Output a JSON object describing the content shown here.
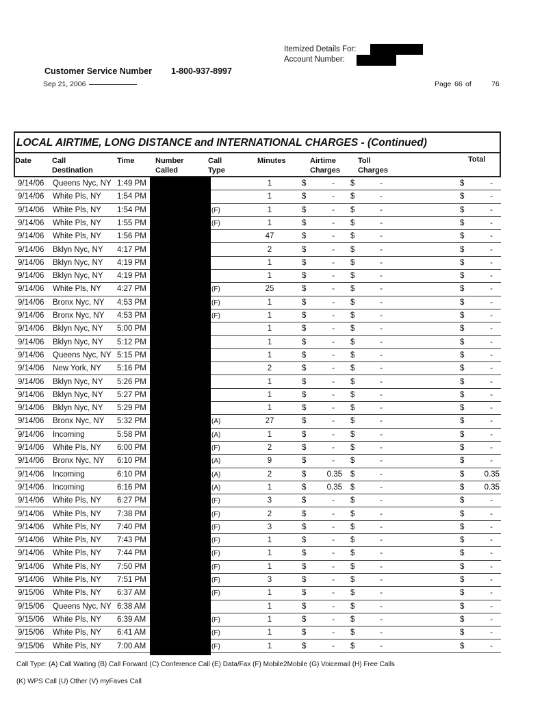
{
  "header": {
    "itemized_label": "Itemized Details For:",
    "account_label": "Account Number:",
    "customer_service_label": "Customer Service Number",
    "customer_service_number": "1-800-937-8997",
    "date": "Sep 21, 2006",
    "page_label": "Page",
    "page_current": "66",
    "page_of": "of",
    "page_total": "76"
  },
  "table": {
    "title": "LOCAL AIRTIME, LONG DISTANCE and INTERNATIONAL CHARGES  - (Continued)",
    "columns": {
      "date": "Date",
      "destination": [
        "Call",
        "Destination"
      ],
      "time": "Time",
      "number": [
        "Number",
        "Called"
      ],
      "type": [
        "Call",
        "Type"
      ],
      "minutes": "Minutes",
      "airtime": [
        "Airtime",
        "Charges"
      ],
      "toll": [
        "Toll",
        "Charges"
      ],
      "total": "Total"
    },
    "currency": "$",
    "rows": [
      [
        "9/14/06",
        "Queens Nyc, NY",
        "1:49 PM",
        "",
        "1",
        "-",
        "-",
        "-"
      ],
      [
        "9/14/06",
        "White Pls, NY",
        "1:54 PM",
        "",
        "1",
        "-",
        "-",
        "-"
      ],
      [
        "9/14/06",
        "White Pls, NY",
        "1:54 PM",
        "(F)",
        "1",
        "-",
        "-",
        "-"
      ],
      [
        "9/14/06",
        "White Pls, NY",
        "1:55 PM",
        "(F)",
        "1",
        "-",
        "-",
        "-"
      ],
      [
        "9/14/06",
        "White Pls, NY",
        "1:56 PM",
        "",
        "47",
        "-",
        "-",
        "-"
      ],
      [
        "9/14/06",
        "Bklyn Nyc, NY",
        "4:17 PM",
        "",
        "2",
        "-",
        "-",
        "-"
      ],
      [
        "9/14/06",
        "Bklyn Nyc, NY",
        "4:19 PM",
        "",
        "1",
        "-",
        "-",
        "-"
      ],
      [
        "9/14/06",
        "Bklyn Nyc, NY",
        "4:19 PM",
        "",
        "1",
        "-",
        "-",
        "-"
      ],
      [
        "9/14/06",
        "White Pls, NY",
        "4:27 PM",
        "(F)",
        "25",
        "-",
        "-",
        "-"
      ],
      [
        "9/14/06",
        "Bronx Nyc, NY",
        "4:53 PM",
        "(F)",
        "1",
        "-",
        "-",
        "-"
      ],
      [
        "9/14/06",
        "Bronx Nyc, NY",
        "4:53 PM",
        "(F)",
        "1",
        "-",
        "-",
        "-"
      ],
      [
        "9/14/06",
        "Bklyn Nyc, NY",
        "5:00 PM",
        "",
        "1",
        "-",
        "-",
        "-"
      ],
      [
        "9/14/06",
        "Bklyn Nyc, NY",
        "5:12 PM",
        "",
        "1",
        "-",
        "-",
        "-"
      ],
      [
        "9/14/06",
        "Queens Nyc, NY",
        "5:15 PM",
        "",
        "1",
        "-",
        "-",
        "-"
      ],
      [
        "9/14/06",
        "New York, NY",
        "5:16 PM",
        "",
        "2",
        "-",
        "-",
        "-"
      ],
      [
        "9/14/06",
        "Bklyn Nyc, NY",
        "5:26 PM",
        "",
        "1",
        "-",
        "-",
        "-"
      ],
      [
        "9/14/06",
        "Bklyn Nyc, NY",
        "5:27 PM",
        "",
        "1",
        "-",
        "-",
        "-"
      ],
      [
        "9/14/06",
        "Bklyn Nyc, NY",
        "5:29 PM",
        "",
        "1",
        "-",
        "-",
        "-"
      ],
      [
        "9/14/06",
        "Bronx Nyc, NY",
        "5:32 PM",
        "(A)",
        "27",
        "-",
        "-",
        "-"
      ],
      [
        "9/14/06",
        "Incoming",
        "5:58 PM",
        "(A)",
        "1",
        "-",
        "-",
        "-"
      ],
      [
        "9/14/06",
        "White Pls, NY",
        "6:00 PM",
        "(F)",
        "2",
        "-",
        "-",
        "-"
      ],
      [
        "9/14/06",
        "Bronx Nyc, NY",
        "6:10 PM",
        "(A)",
        "9",
        "-",
        "-",
        "-"
      ],
      [
        "9/14/06",
        "Incoming",
        "6:10 PM",
        "(A)",
        "2",
        "0.35",
        "-",
        "0.35"
      ],
      [
        "9/14/06",
        "Incoming",
        "6:16 PM",
        "(A)",
        "1",
        "0.35",
        "-",
        "0.35"
      ],
      [
        "9/14/06",
        "White Pls, NY",
        "6:27 PM",
        "(F)",
        "3",
        "-",
        "-",
        "-"
      ],
      [
        "9/14/06",
        "White Pls, NY",
        "7:38 PM",
        "(F)",
        "2",
        "-",
        "-",
        "-"
      ],
      [
        "9/14/06",
        "White Pls, NY",
        "7:40 PM",
        "(F)",
        "3",
        "-",
        "-",
        "-"
      ],
      [
        "9/14/06",
        "White Pls, NY",
        "7:43 PM",
        "(F)",
        "1",
        "-",
        "-",
        "-"
      ],
      [
        "9/14/06",
        "White Pls, NY",
        "7:44 PM",
        "(F)",
        "1",
        "-",
        "-",
        "-"
      ],
      [
        "9/14/06",
        "White Pls, NY",
        "7:50 PM",
        "(F)",
        "1",
        "-",
        "-",
        "-"
      ],
      [
        "9/14/06",
        "White Pls, NY",
        "7:51 PM",
        "(F)",
        "3",
        "-",
        "-",
        "-"
      ],
      [
        "9/15/06",
        "White Pls, NY",
        "6:37 AM",
        "(F)",
        "1",
        "-",
        "-",
        "-"
      ],
      [
        "9/15/06",
        "Queens Nyc, NY",
        "6:38 AM",
        "",
        "1",
        "-",
        "-",
        "-"
      ],
      [
        "9/15/06",
        "White Pls, NY",
        "6:39 AM",
        "(F)",
        "1",
        "-",
        "-",
        "-"
      ],
      [
        "9/15/06",
        "White Pls, NY",
        "6:41 AM",
        "(F)",
        "1",
        "-",
        "-",
        "-"
      ],
      [
        "9/15/06",
        "White Pls, NY",
        "7:00 AM",
        "(F)",
        "1",
        "-",
        "-",
        "-"
      ]
    ]
  },
  "footer": {
    "legend_line1": "Call Type: (A) Call Waiting (B) Call Forward (C) Conference Call (E) Data/Fax (F) Mobile2Mobile (G) Voicemail (H) Free Calls",
    "legend_line2": "(K) WPS Call (U) Other (V) myFaves Call"
  }
}
